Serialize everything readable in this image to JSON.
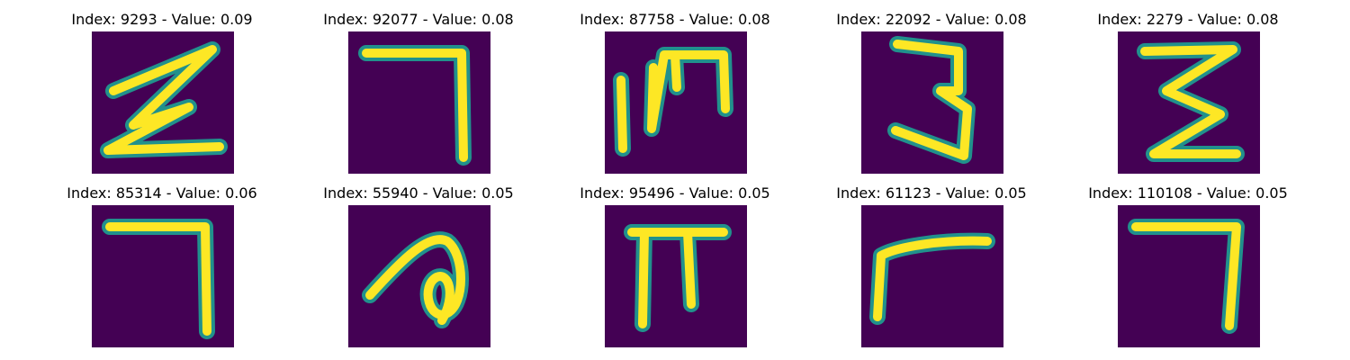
{
  "colors": {
    "background": "#440154",
    "stroke_outer": "#21918c",
    "stroke_inner": "#fde725"
  },
  "panels": [
    {
      "title": "Index: 9293 - Value: 0.09",
      "glyph": "digit-2-zigzag"
    },
    {
      "title": "Index: 92077 - Value: 0.08",
      "glyph": "digit-7"
    },
    {
      "title": "Index: 87758 - Value: 0.08",
      "glyph": "letter-m"
    },
    {
      "title": "Index: 22092 - Value: 0.08",
      "glyph": "digit-3"
    },
    {
      "title": "Index: 2279 - Value: 0.08",
      "glyph": "digit-3-angular"
    },
    {
      "title": "Index: 85314 - Value: 0.06",
      "glyph": "digit-7"
    },
    {
      "title": "Index: 55940 - Value: 0.05",
      "glyph": "letter-a-curl"
    },
    {
      "title": "Index: 95496 - Value: 0.05",
      "glyph": "pi-shape"
    },
    {
      "title": "Index: 61123 - Value: 0.05",
      "glyph": "letter-r"
    },
    {
      "title": "Index: 110108 - Value: 0.05",
      "glyph": "digit-7"
    }
  ]
}
